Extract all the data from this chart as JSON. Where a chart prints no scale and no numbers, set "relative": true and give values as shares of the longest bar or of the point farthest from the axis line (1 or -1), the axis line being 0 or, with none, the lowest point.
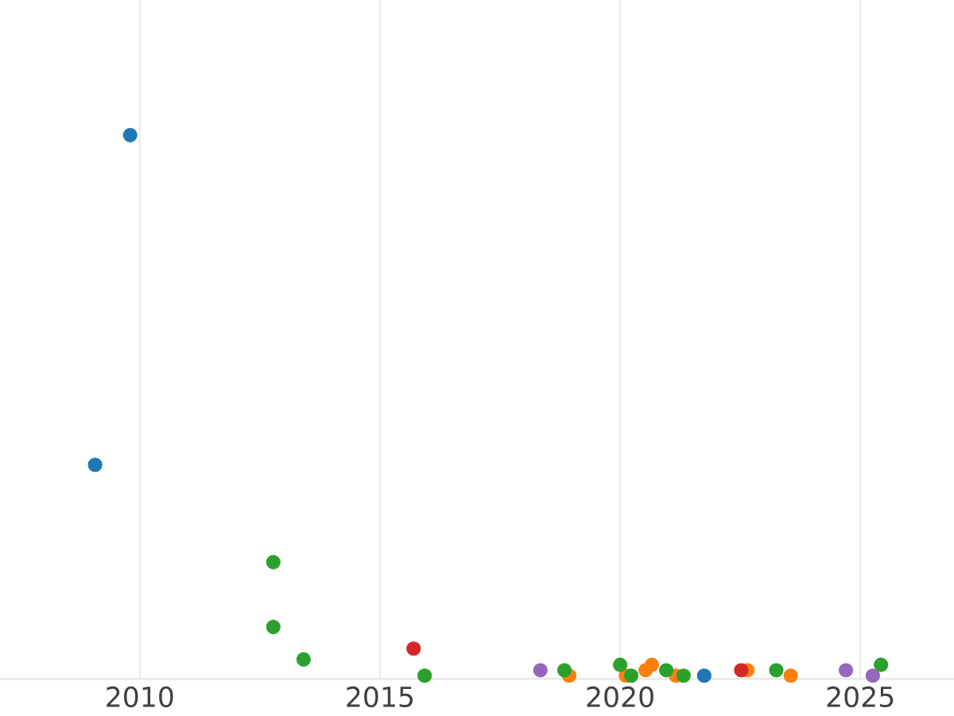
{
  "chart_data": {
    "type": "scatter",
    "relative": true,
    "marker": "circle",
    "grid": "x",
    "xlim": [
      2007.09,
      2026.95
    ],
    "xticks": [
      2010,
      2015,
      2020,
      2025
    ],
    "series": [
      {
        "color": "#1f77b4",
        "x": [
          2009.8,
          2009.07,
          2021.75
        ],
        "values": [
          1.0,
          0.39,
          0.0
        ]
      },
      {
        "color": "#ff7f0e",
        "x": [
          2018.94,
          2020.12,
          2020.53,
          2020.66,
          2021.16,
          2022.65,
          2023.55
        ],
        "values": [
          0.0,
          0.0,
          0.01,
          0.02,
          0.0,
          0.01,
          0.0
        ]
      },
      {
        "color": "#2ca02c",
        "x": [
          2012.78,
          2012.78,
          2013.41,
          2015.93,
          2018.84,
          2020.0,
          2020.23,
          2020.96,
          2021.32,
          2023.25,
          2025.43
        ],
        "values": [
          0.21,
          0.09,
          0.03,
          0.0,
          0.01,
          0.02,
          0.0,
          0.01,
          0.0,
          0.01,
          0.02
        ]
      },
      {
        "color": "#d62728",
        "x": [
          2015.7,
          2022.52
        ],
        "values": [
          0.05,
          0.01
        ]
      },
      {
        "color": "#9467bd",
        "x": [
          2018.34,
          2024.7,
          2025.26
        ],
        "values": [
          0.01,
          0.01,
          0.0
        ]
      }
    ]
  }
}
